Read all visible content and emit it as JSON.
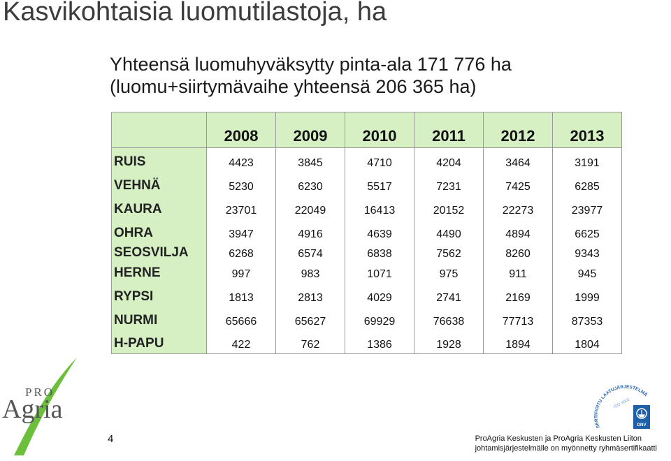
{
  "header": {
    "title": "Kasvikohtaisia luomutilastoja, ha",
    "subtitle_line1": "Yhteensä luomuhyväksytty pinta-ala 171 776 ha",
    "subtitle_line2": "(luomu+siirtymävaihe yhteensä 206 365 ha)"
  },
  "table": {
    "years": [
      "2008",
      "2009",
      "2010",
      "2011",
      "2012",
      "2013"
    ],
    "rows": [
      {
        "label": "RUIS",
        "values": [
          "4423",
          "3845",
          "4710",
          "4204",
          "3464",
          "3191"
        ]
      },
      {
        "label": "VEHNÄ",
        "values": [
          "5230",
          "6230",
          "5517",
          "7231",
          "7425",
          "6285"
        ]
      },
      {
        "label": "KAURA",
        "values": [
          "23701",
          "22049",
          "16413",
          "20152",
          "22273",
          "23977"
        ]
      },
      {
        "label": "OHRA",
        "values": [
          "3947",
          "4916",
          "4639",
          "4490",
          "4894",
          "6625"
        ]
      },
      {
        "label": "SEOSVILJA",
        "values": [
          "6268",
          "6574",
          "6838",
          "7562",
          "8260",
          "9343"
        ]
      },
      {
        "label": "HERNE",
        "values": [
          "997",
          "983",
          "1071",
          "975",
          "911",
          "945"
        ]
      },
      {
        "label": "RYPSI",
        "values": [
          "1813",
          "2813",
          "4029",
          "2741",
          "2169",
          "1999"
        ]
      },
      {
        "label": "NURMI",
        "values": [
          "65666",
          "65627",
          "69929",
          "76638",
          "77713",
          "87353"
        ]
      },
      {
        "label": "H-PAPU",
        "values": [
          "422",
          "762",
          "1386",
          "1928",
          "1894",
          "1804"
        ]
      }
    ]
  },
  "logo": {
    "pro_text": "PRO",
    "agria_text": "Agria"
  },
  "cert_logo": {
    "arc_text": "SERTIFIOITU LAATUJÄRJESTELMÄ",
    "iso_text": "ISO 9001",
    "dnv_text": "DNV"
  },
  "page_number": "4",
  "footer": {
    "line1": "ProAgria Keskusten ja ProAgria Keskusten Liiton",
    "line2": "johtamisjärjestelmälle on myönnetty ryhmäsertifikaatti"
  },
  "colors": {
    "header_fill": "#d6f0c4",
    "logo_green": "#6cbf3a",
    "cert_blue": "#1f5fa8"
  }
}
